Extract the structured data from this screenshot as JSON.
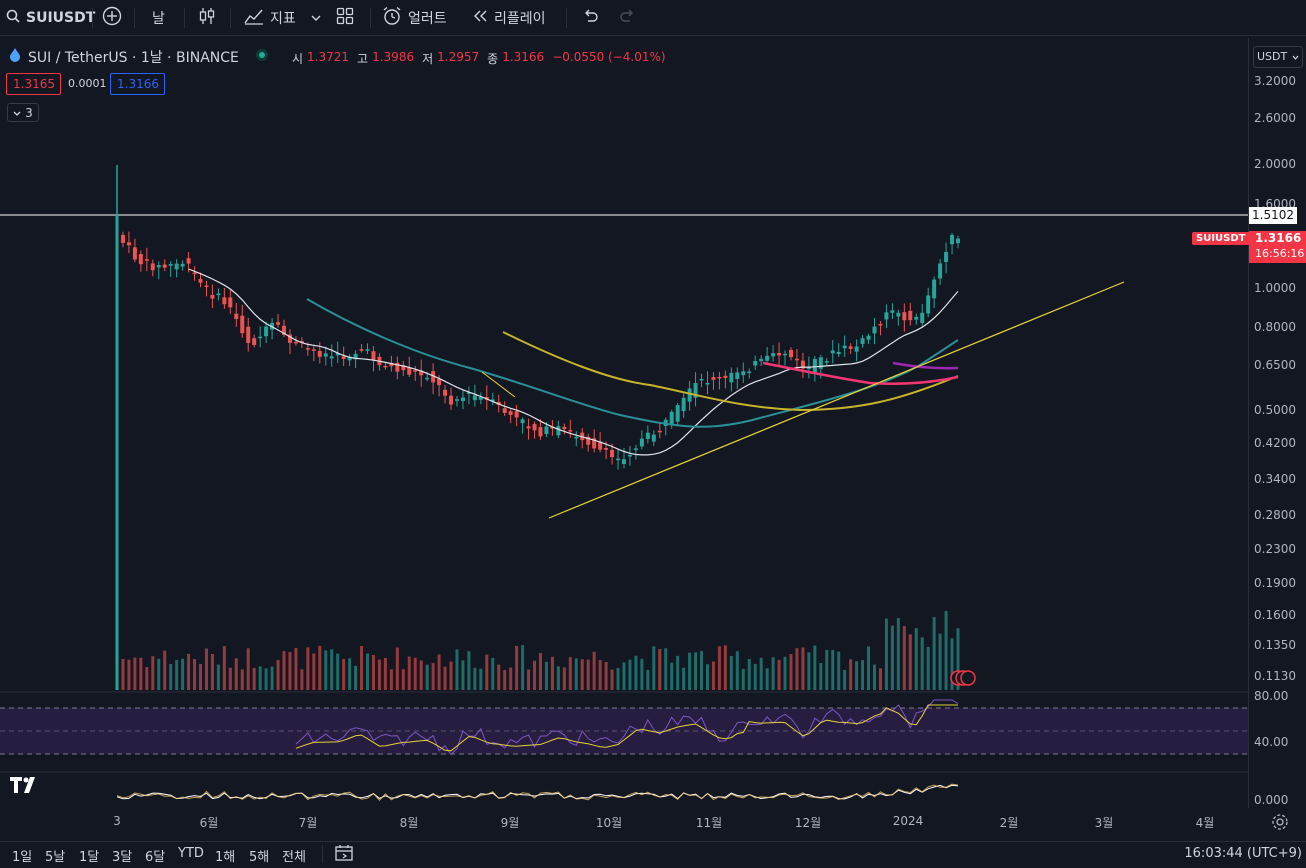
{
  "toolbar": {
    "symbol": "SUIUSDT",
    "interval": "날",
    "indicators_label": "지표",
    "alerts_label": "얼러트",
    "replay_label": "리플레이"
  },
  "legend": {
    "title": "SUI / TetherUS · 1날 · BINANCE",
    "open_label": "시",
    "open": "1.3721",
    "high_label": "고",
    "high": "1.3986",
    "low_label": "저",
    "low": "1.2957",
    "close_label": "종",
    "close": "1.3166",
    "change": "−0.0550 (−4.01%)",
    "sell_price": "1.3165",
    "spread": "0.0001",
    "buy_price": "1.3166",
    "indicator_collapse": "3"
  },
  "price_axis": {
    "currency": "USDT",
    "ticks": [
      "3.2000",
      "2.6000",
      "2.0000",
      "1.6000",
      "1.0000",
      "0.8000",
      "0.6500",
      "0.5000",
      "0.4200",
      "0.3400",
      "0.2800",
      "0.2300",
      "0.1900",
      "0.1600",
      "0.1350",
      "0.1130"
    ],
    "horizontal_line_price": "1.5102",
    "symbol_tag": "SUIUSDT",
    "last_price": "1.3166",
    "countdown": "16:56:16"
  },
  "rsi_axis": {
    "ticks": [
      "80.00",
      "40.00"
    ]
  },
  "osc_axis": {
    "ticks": [
      "0.000"
    ]
  },
  "time_axis": {
    "ticks": [
      "3",
      "6월",
      "7월",
      "8월",
      "9월",
      "10월",
      "11월",
      "12월",
      "2024",
      "2월",
      "3월",
      "4월"
    ]
  },
  "bottom": {
    "timeframes": [
      "1일",
      "5날",
      "1달",
      "3달",
      "6달",
      "YTD",
      "1해",
      "5해",
      "전체"
    ],
    "clock": "16:03:44 (UTC+9)"
  },
  "colors": {
    "up": "#26a69a",
    "down": "#ef5350",
    "bg": "#131722"
  }
}
